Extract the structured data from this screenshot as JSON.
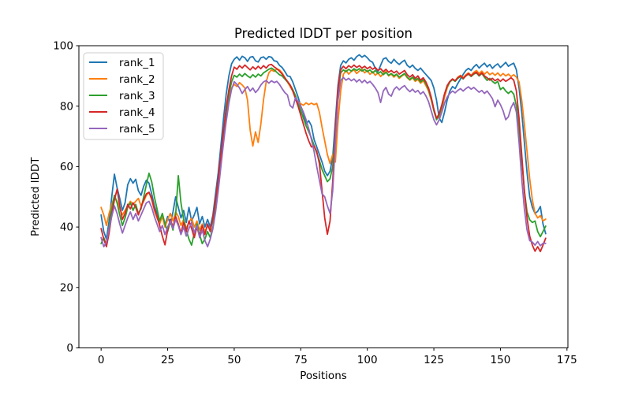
{
  "chart_data": {
    "type": "line",
    "title": "Predicted lDDT per position",
    "xlabel": "Positions",
    "ylabel": "Predicted lDDT",
    "xlim": [
      -8.35,
      175.35
    ],
    "ylim": [
      0,
      100
    ],
    "xticks": [
      0,
      25,
      50,
      75,
      100,
      125,
      150,
      175
    ],
    "yticks": [
      0,
      20,
      40,
      60,
      80,
      100
    ],
    "grid": false,
    "legend_position": "upper left",
    "x_is_index": true,
    "n_points": 168,
    "axis_color": "#000000",
    "background_color": "#ffffff",
    "series": [
      {
        "name": "rank_1",
        "color": "#1f77b4",
        "values": [
          44.0,
          38.5,
          36.0,
          42.0,
          50.0,
          57.5,
          53.0,
          49.5,
          45.5,
          48.0,
          54.0,
          56.0,
          54.5,
          55.8,
          52.0,
          50.5,
          53.5,
          55.5,
          54.5,
          51.0,
          47.0,
          44.5,
          42.0,
          44.0,
          40.5,
          43.5,
          41.0,
          45.0,
          50.0,
          46.5,
          43.0,
          45.5,
          41.5,
          46.5,
          42.0,
          44.0,
          46.5,
          41.0,
          43.5,
          40.0,
          42.5,
          40.0,
          44.0,
          51.0,
          58.0,
          67.0,
          76.0,
          84.0,
          90.0,
          94.0,
          95.5,
          96.3,
          95.2,
          96.5,
          96.0,
          94.8,
          96.2,
          96.4,
          95.0,
          94.6,
          96.0,
          96.3,
          95.5,
          96.4,
          96.2,
          95.0,
          94.8,
          93.5,
          92.8,
          91.5,
          90.0,
          89.8,
          88.0,
          85.5,
          83.0,
          80.0,
          77.5,
          74.0,
          75.2,
          73.5,
          69.0,
          66.5,
          64.0,
          61.5,
          58.5,
          57.0,
          58.5,
          63.0,
          75.0,
          87.0,
          93.5,
          95.0,
          94.3,
          95.5,
          96.0,
          95.2,
          96.4,
          97.0,
          96.2,
          96.8,
          96.0,
          95.0,
          94.5,
          92.5,
          91.5,
          93.5,
          95.6,
          96.0,
          94.8,
          94.2,
          95.5,
          94.5,
          93.8,
          94.6,
          95.2,
          93.5,
          92.8,
          93.6,
          92.5,
          91.8,
          92.6,
          91.5,
          90.5,
          89.5,
          88.5,
          86.0,
          82.0,
          76.0,
          74.6,
          78.0,
          82.0,
          85.0,
          86.5,
          85.8,
          87.5,
          89.0,
          90.5,
          91.8,
          92.5,
          91.8,
          93.0,
          93.8,
          92.6,
          93.5,
          94.2,
          93.0,
          93.8,
          92.5,
          93.4,
          94.0,
          92.8,
          93.6,
          94.5,
          93.2,
          93.8,
          94.2,
          92.0,
          86.0,
          78.0,
          68.0,
          58.0,
          50.0,
          46.5,
          44.5,
          45.2,
          46.8,
          41.0,
          37.8
        ]
      },
      {
        "name": "rank_2",
        "color": "#ff7f0e",
        "values": [
          46.5,
          44.0,
          40.5,
          44.5,
          47.5,
          50.0,
          48.5,
          46.0,
          44.0,
          45.5,
          47.0,
          48.5,
          47.5,
          48.5,
          49.5,
          47.0,
          48.5,
          50.5,
          51.5,
          49.0,
          45.5,
          43.0,
          41.0,
          43.5,
          40.0,
          42.5,
          44.5,
          42.0,
          45.0,
          43.5,
          40.5,
          42.5,
          39.5,
          41.5,
          43.0,
          40.0,
          42.0,
          39.0,
          41.0,
          38.5,
          40.5,
          39.0,
          42.5,
          48.0,
          55.0,
          63.0,
          71.0,
          78.0,
          83.0,
          86.0,
          87.2,
          86.5,
          87.8,
          87.0,
          86.0,
          82.0,
          72.0,
          66.8,
          71.5,
          68.0,
          74.0,
          82.0,
          88.0,
          91.0,
          92.0,
          91.5,
          92.3,
          92.0,
          91.0,
          89.5,
          88.0,
          86.5,
          85.0,
          83.0,
          81.5,
          80.8,
          80.3,
          81.1,
          80.5,
          81.0,
          80.5,
          80.9,
          78.0,
          73.0,
          68.5,
          64.0,
          61.0,
          64.0,
          61.5,
          75.0,
          85.0,
          90.5,
          91.8,
          90.6,
          91.5,
          92.0,
          90.8,
          91.6,
          92.2,
          91.0,
          91.8,
          90.5,
          91.4,
          90.2,
          91.0,
          89.8,
          90.8,
          91.5,
          90.0,
          90.6,
          89.6,
          90.4,
          89.2,
          90.0,
          90.6,
          89.4,
          88.6,
          89.4,
          88.2,
          88.8,
          87.6,
          88.4,
          86.8,
          85.0,
          82.0,
          78.5,
          75.8,
          76.5,
          79.0,
          83.0,
          86.0,
          88.0,
          89.0,
          88.4,
          89.6,
          90.2,
          89.4,
          90.4,
          91.0,
          90.2,
          91.2,
          91.8,
          90.8,
          91.6,
          90.6,
          91.4,
          90.4,
          91.0,
          90.2,
          91.0,
          90.0,
          90.8,
          90.0,
          90.6,
          89.8,
          90.4,
          89.6,
          88.0,
          82.0,
          74.0,
          65.0,
          56.0,
          49.0,
          44.5,
          43.0,
          43.8,
          42.0,
          42.6
        ]
      },
      {
        "name": "rank_3",
        "color": "#2ca02c",
        "values": [
          34.5,
          36.5,
          34.0,
          40.0,
          46.0,
          50.5,
          48.0,
          44.0,
          40.5,
          43.0,
          46.5,
          48.0,
          45.5,
          47.5,
          44.5,
          46.0,
          50.0,
          54.0,
          57.8,
          55.0,
          50.0,
          46.0,
          42.0,
          44.5,
          41.0,
          38.5,
          42.0,
          39.0,
          44.0,
          57.0,
          48.0,
          42.5,
          39.0,
          36.0,
          34.0,
          38.0,
          41.0,
          37.5,
          34.5,
          36.0,
          38.5,
          36.5,
          40.0,
          47.0,
          54.0,
          62.0,
          70.5,
          78.0,
          84.0,
          88.0,
          90.2,
          89.6,
          90.6,
          89.8,
          90.8,
          90.0,
          89.4,
          90.4,
          89.6,
          90.6,
          90.0,
          91.0,
          91.6,
          92.2,
          92.6,
          92.0,
          91.2,
          90.4,
          90.0,
          89.0,
          88.0,
          87.0,
          85.5,
          83.5,
          81.0,
          78.5,
          76.0,
          73.5,
          71.5,
          69.5,
          67.0,
          64.5,
          62.0,
          59.0,
          57.0,
          55.0,
          56.0,
          60.0,
          72.0,
          85.0,
          91.0,
          92.0,
          91.4,
          92.2,
          91.6,
          92.4,
          91.8,
          92.4,
          91.6,
          92.2,
          91.4,
          92.0,
          91.0,
          91.8,
          90.8,
          91.4,
          90.4,
          91.2,
          90.2,
          90.8,
          90.0,
          90.6,
          89.6,
          90.2,
          90.8,
          89.6,
          88.8,
          89.6,
          88.6,
          89.2,
          88.0,
          88.8,
          87.4,
          85.5,
          82.5,
          78.5,
          75.5,
          77.0,
          80.0,
          84.0,
          86.5,
          88.0,
          88.8,
          88.2,
          89.2,
          89.8,
          89.0,
          90.0,
          90.6,
          89.8,
          90.6,
          91.0,
          90.0,
          90.8,
          89.6,
          88.5,
          89.2,
          88.2,
          87.5,
          88.2,
          85.5,
          86.2,
          85.0,
          84.2,
          85.0,
          84.0,
          80.0,
          72.0,
          62.0,
          52.0,
          45.0,
          42.4,
          41.5,
          42.0,
          38.5,
          36.8,
          38.5,
          40.3
        ]
      },
      {
        "name": "rank_4",
        "color": "#d62728",
        "values": [
          39.5,
          36.0,
          33.5,
          38.0,
          44.0,
          49.0,
          52.5,
          47.0,
          42.5,
          44.5,
          47.5,
          46.0,
          48.0,
          46.5,
          44.0,
          46.5,
          49.0,
          51.0,
          51.5,
          49.5,
          46.0,
          43.5,
          40.5,
          37.0,
          34.1,
          39.0,
          42.5,
          40.0,
          43.5,
          41.0,
          38.0,
          41.5,
          38.5,
          42.0,
          39.5,
          36.5,
          40.0,
          37.0,
          40.5,
          37.5,
          41.0,
          38.5,
          43.0,
          49.0,
          56.0,
          64.0,
          72.0,
          79.5,
          85.5,
          90.0,
          92.9,
          92.2,
          93.4,
          92.6,
          93.6,
          92.8,
          92.0,
          93.0,
          92.2,
          93.2,
          92.4,
          93.4,
          92.6,
          93.6,
          93.8,
          93.0,
          92.4,
          91.6,
          90.6,
          89.4,
          88.2,
          87.0,
          85.0,
          82.5,
          80.0,
          77.0,
          74.0,
          71.0,
          68.5,
          66.5,
          66.8,
          65.0,
          61.0,
          52.0,
          43.0,
          37.6,
          42.0,
          55.0,
          72.0,
          86.0,
          92.0,
          93.2,
          92.4,
          93.4,
          92.8,
          93.6,
          92.8,
          93.4,
          92.6,
          93.2,
          92.4,
          93.0,
          92.2,
          92.8,
          91.8,
          92.4,
          91.4,
          92.2,
          91.2,
          91.8,
          91.0,
          91.6,
          90.6,
          91.2,
          91.8,
          90.4,
          89.6,
          90.4,
          89.2,
          90.0,
          88.6,
          89.4,
          88.0,
          86.0,
          83.0,
          79.0,
          76.0,
          77.5,
          80.5,
          84.0,
          86.8,
          88.2,
          89.0,
          88.4,
          89.4,
          90.0,
          89.2,
          90.0,
          90.8,
          90.0,
          90.8,
          91.2,
          90.2,
          91.0,
          90.0,
          89.4,
          88.6,
          89.2,
          88.4,
          89.0,
          88.2,
          89.0,
          88.2,
          88.8,
          89.4,
          88.6,
          85.0,
          76.0,
          64.0,
          52.0,
          43.0,
          37.0,
          34.0,
          32.0,
          33.5,
          31.9,
          34.0,
          36.3
        ]
      },
      {
        "name": "rank_5",
        "color": "#9467bd",
        "values": [
          36.5,
          33.5,
          35.0,
          39.5,
          43.5,
          47.0,
          44.5,
          41.0,
          38.0,
          40.5,
          43.0,
          45.0,
          42.5,
          44.5,
          42.0,
          44.0,
          46.0,
          48.0,
          48.5,
          46.5,
          43.5,
          41.0,
          38.5,
          40.5,
          37.5,
          40.0,
          42.0,
          39.5,
          42.5,
          40.5,
          37.5,
          40.0,
          37.0,
          39.5,
          41.5,
          38.0,
          40.5,
          36.5,
          39.0,
          35.5,
          33.5,
          36.0,
          39.5,
          45.0,
          52.0,
          60.0,
          68.0,
          75.0,
          81.0,
          85.5,
          88.1,
          87.2,
          86.0,
          84.2,
          85.5,
          86.5,
          85.0,
          86.0,
          84.5,
          85.5,
          87.0,
          88.0,
          88.5,
          87.6,
          88.4,
          87.8,
          88.2,
          87.2,
          85.8,
          84.5,
          83.7,
          80.2,
          79.4,
          82.8,
          81.5,
          80.0,
          78.0,
          75.5,
          72.5,
          69.0,
          65.0,
          60.0,
          55.5,
          51.0,
          50.0,
          47.0,
          44.5,
          52.0,
          68.0,
          82.0,
          88.5,
          89.5,
          88.6,
          89.2,
          88.4,
          89.0,
          88.0,
          88.8,
          87.8,
          88.6,
          87.6,
          88.2,
          87.2,
          86.0,
          84.5,
          81.2,
          85.0,
          86.2,
          84.0,
          83.3,
          85.5,
          86.4,
          85.4,
          86.2,
          86.8,
          85.6,
          84.8,
          85.6,
          84.6,
          85.2,
          84.0,
          84.8,
          83.4,
          81.5,
          78.5,
          75.5,
          73.8,
          75.5,
          78.0,
          81.0,
          83.0,
          84.2,
          85.0,
          84.4,
          85.2,
          85.8,
          85.0,
          85.8,
          86.4,
          85.6,
          86.2,
          85.4,
          84.6,
          85.2,
          84.2,
          85.0,
          83.8,
          82.5,
          79.8,
          82.0,
          80.5,
          78.5,
          75.5,
          76.5,
          79.5,
          81.2,
          78.0,
          68.0,
          56.0,
          46.0,
          39.0,
          35.5,
          35.0,
          34.0,
          35.2,
          33.8,
          34.6,
          34.6
        ]
      }
    ]
  }
}
